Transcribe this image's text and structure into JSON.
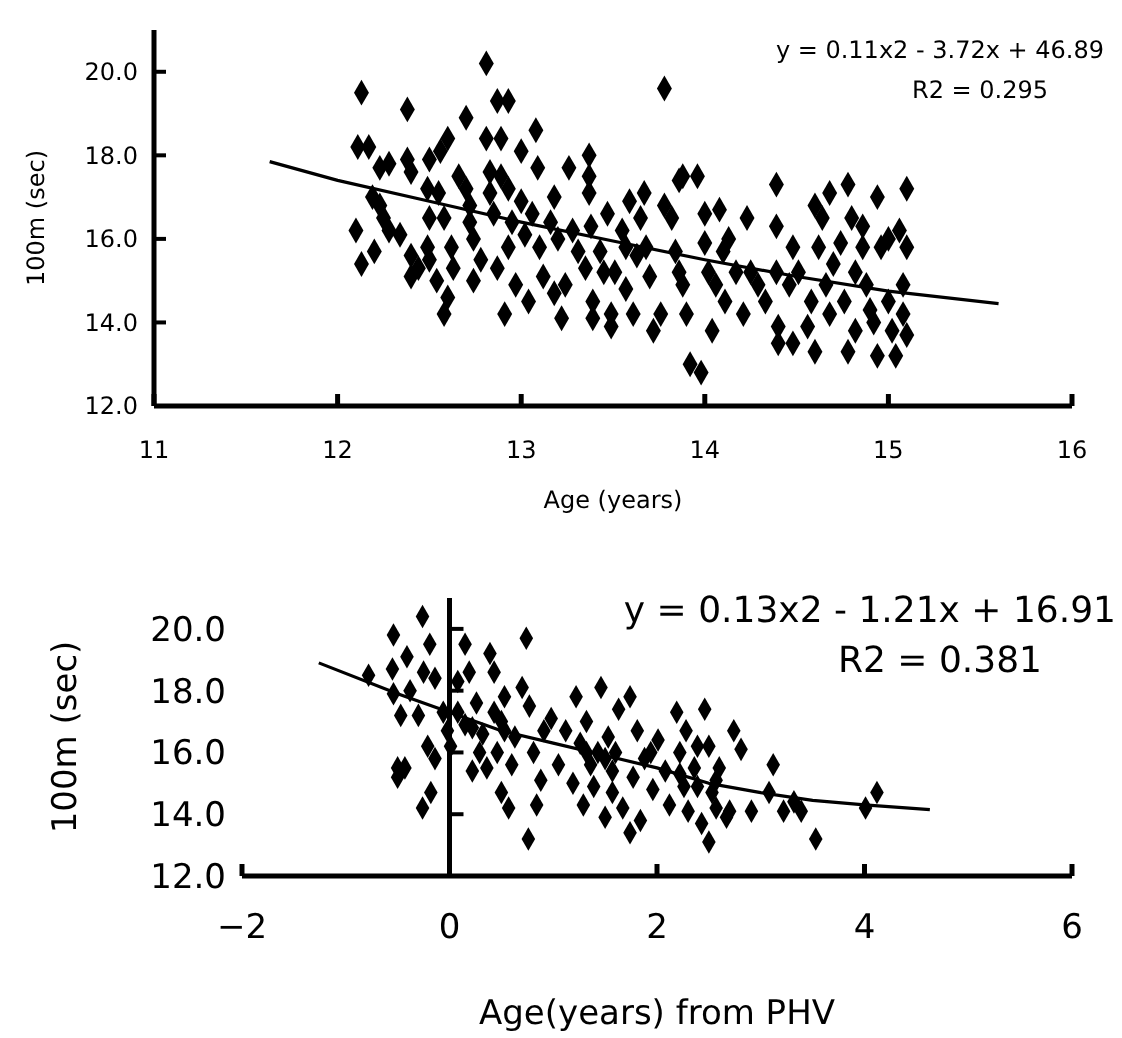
{
  "chart_data": [
    {
      "type": "scatter",
      "xlabel": "Age (years)",
      "ylabel": "100m (sec)",
      "annotations": [
        "y = 0.11x2 - 3.72x + 46.89",
        "R2 = 0.295"
      ],
      "xlim": [
        11,
        16
      ],
      "ylim": [
        12,
        21
      ],
      "xticks": [
        11,
        12,
        13,
        14,
        15,
        16
      ],
      "yticks": [
        {
          "value": 12,
          "label": "12.0"
        },
        {
          "value": 14,
          "label": "14.0"
        },
        {
          "value": 16,
          "label": "16.0"
        },
        {
          "value": 18,
          "label": "18.0"
        },
        {
          "value": 20,
          "label": "20.0"
        }
      ],
      "marker": "diamond",
      "series": [
        {
          "color": "#000000",
          "x": [
            12.13,
            12.11,
            12.17,
            12.1,
            12.13,
            12.19,
            12.2,
            12.23,
            12.25,
            12.23,
            12.28,
            12.28,
            12.34,
            12.38,
            12.38,
            12.4,
            12.4,
            12.4,
            12.44,
            12.5,
            12.49,
            12.5,
            12.49,
            12.5,
            12.54,
            12.56,
            12.55,
            12.58,
            12.6,
            12.58,
            12.6,
            12.62,
            12.63,
            12.66,
            12.7,
            12.7,
            12.72,
            12.72,
            12.74,
            12.74,
            12.78,
            12.81,
            12.81,
            12.83,
            12.83,
            12.85,
            12.87,
            12.87,
            12.89,
            12.89,
            12.91,
            12.93,
            12.93,
            12.93,
            12.95,
            12.97,
            13.0,
            13.0,
            13.02,
            13.04,
            13.06,
            13.08,
            13.09,
            13.1,
            13.12,
            13.16,
            13.18,
            13.18,
            13.2,
            13.26,
            13.24,
            13.22,
            13.28,
            13.31,
            13.35,
            13.37,
            13.37,
            13.37,
            13.38,
            13.39,
            13.39,
            13.43,
            13.45,
            13.47,
            13.49,
            13.49,
            13.51,
            13.55,
            13.57,
            13.57,
            13.59,
            13.61,
            13.63,
            13.65,
            13.67,
            13.68,
            13.7,
            13.72,
            13.76,
            13.78,
            13.78,
            13.82,
            13.84,
            13.86,
            13.88,
            13.86,
            13.88,
            13.9,
            13.92,
            13.96,
            13.98,
            14.0,
            14.0,
            14.02,
            14.04,
            14.06,
            14.08,
            14.1,
            14.11,
            14.13,
            14.17,
            14.21,
            14.23,
            14.25,
            14.29,
            14.33,
            14.39,
            14.39,
            14.39,
            14.4,
            14.4,
            14.46,
            14.48,
            14.48,
            14.51,
            14.56,
            14.58,
            14.6,
            14.6,
            14.62,
            14.64,
            14.66,
            14.68,
            14.68,
            14.7,
            14.74,
            14.76,
            14.78,
            14.78,
            14.8,
            14.82,
            14.82,
            14.86,
            14.86,
            14.88,
            14.9,
            14.92,
            14.94,
            14.94,
            14.96,
            15.0,
            15.0,
            15.02,
            15.04,
            15.06,
            15.08,
            15.1,
            15.1,
            15.1,
            15.08
          ],
          "values": [
            19.5,
            18.2,
            18.2,
            16.2,
            15.4,
            17.0,
            15.7,
            16.8,
            16.5,
            17.7,
            17.8,
            16.2,
            16.1,
            19.1,
            17.9,
            17.6,
            15.6,
            15.1,
            15.3,
            17.9,
            17.2,
            16.5,
            15.8,
            15.5,
            15.0,
            18.1,
            17.1,
            16.5,
            18.4,
            14.2,
            14.6,
            15.8,
            15.3,
            17.5,
            18.9,
            17.2,
            16.8,
            16.4,
            15.0,
            16.0,
            15.5,
            20.2,
            18.4,
            17.6,
            17.1,
            16.6,
            15.3,
            19.3,
            18.4,
            17.5,
            14.2,
            19.3,
            17.2,
            15.8,
            16.4,
            14.9,
            18.1,
            16.9,
            16.1,
            14.5,
            16.6,
            18.6,
            17.7,
            15.8,
            15.1,
            16.4,
            17.0,
            14.7,
            16.0,
            17.7,
            14.9,
            14.1,
            16.2,
            15.7,
            15.3,
            18.0,
            17.5,
            17.1,
            16.3,
            14.5,
            14.1,
            15.7,
            15.2,
            16.6,
            14.2,
            13.9,
            15.2,
            16.2,
            15.8,
            14.8,
            16.9,
            14.2,
            15.6,
            16.5,
            17.1,
            15.8,
            15.1,
            13.8,
            14.2,
            19.6,
            16.8,
            16.5,
            15.7,
            17.4,
            17.5,
            15.2,
            14.9,
            14.2,
            13.0,
            17.5,
            12.8,
            16.6,
            15.9,
            15.2,
            13.8,
            14.9,
            16.7,
            15.7,
            14.5,
            16.0,
            15.2,
            14.2,
            16.5,
            15.2,
            14.9,
            14.5,
            17.3,
            16.3,
            15.2,
            13.5,
            13.9,
            14.9,
            15.8,
            13.5,
            15.2,
            13.9,
            14.5,
            16.8,
            13.3,
            15.8,
            16.5,
            14.9,
            17.1,
            14.2,
            15.4,
            15.9,
            14.5,
            17.3,
            13.3,
            16.5,
            15.2,
            13.8,
            16.3,
            15.8,
            14.9,
            14.3,
            14.0,
            17.0,
            13.2,
            15.8,
            16.0,
            14.5,
            13.8,
            13.2,
            16.2,
            14.9,
            13.7,
            17.2,
            15.8,
            14.2
          ]
        },
        {
          "type": "line",
          "color": "#000000",
          "marker": "none",
          "x": [
            11.63,
            12,
            12.5,
            13,
            13.5,
            14,
            14.5,
            15,
            15.6
          ],
          "values": [
            17.85,
            17.4,
            16.9,
            16.4,
            15.95,
            15.5,
            15.1,
            14.75,
            14.45
          ]
        }
      ]
    },
    {
      "type": "scatter",
      "xlabel": "Age(years) from PHV",
      "ylabel": "100m (sec)",
      "annotations": [
        "y = 0.13x2 - 1.21x + 16.91",
        "R2 = 0.381"
      ],
      "xlim": [
        -2,
        6
      ],
      "ylim": [
        12,
        21
      ],
      "xticks": [
        -2,
        0,
        2,
        4,
        6
      ],
      "yticks": [
        {
          "value": 12,
          "label": "12.0"
        },
        {
          "value": 14,
          "label": "14.0"
        },
        {
          "value": 16,
          "label": "16.0"
        },
        {
          "value": 18,
          "label": "18.0"
        },
        {
          "value": 20,
          "label": "20.0"
        }
      ],
      "marker": "diamond",
      "ref_lines": [
        {
          "axis": "x",
          "value": 0
        }
      ],
      "series": [
        {
          "color": "#000000",
          "x": [
            -0.78,
            -0.54,
            -0.54,
            -0.55,
            -0.47,
            -0.41,
            -0.38,
            -0.5,
            -0.5,
            -0.43,
            -0.3,
            -0.26,
            -0.25,
            -0.19,
            -0.21,
            -0.26,
            -0.18,
            -0.14,
            -0.14,
            -0.06,
            -0.02,
            0.01,
            0.08,
            0.15,
            0.15,
            0.19,
            0.22,
            0.26,
            0.29,
            0.32,
            0.39,
            0.43,
            0.43,
            0.46,
            0.5,
            0.53,
            0.53,
            0.57,
            0.6,
            0.63,
            0.7,
            0.74,
            0.76,
            0.77,
            0.81,
            0.84,
            0.88,
            0.91,
            0.98,
            1.05,
            1.12,
            1.19,
            1.22,
            1.26,
            1.29,
            1.32,
            1.36,
            1.39,
            1.43,
            1.46,
            1.5,
            1.53,
            1.57,
            1.57,
            1.6,
            1.63,
            1.67,
            1.74,
            1.74,
            1.77,
            1.81,
            1.84,
            1.88,
            1.94,
            1.96,
            2.01,
            2.08,
            2.12,
            2.19,
            2.22,
            2.26,
            2.28,
            2.3,
            2.36,
            2.39,
            2.43,
            2.46,
            2.5,
            2.5,
            2.53,
            2.57,
            2.6,
            2.67,
            2.7,
            2.74,
            2.81,
            2.91,
            3.08,
            3.12,
            3.22,
            3.32,
            3.39,
            3.53,
            4.01,
            4.12,
            0.08,
            0.22,
            0.5,
            0.36,
            1.32,
            1.5,
            2.22,
            2.39,
            2.57
          ],
          "values": [
            18.5,
            17.9,
            19.8,
            18.7,
            17.2,
            19.1,
            18.0,
            15.5,
            15.2,
            15.5,
            17.2,
            20.4,
            18.6,
            19.5,
            16.2,
            14.2,
            14.7,
            18.4,
            15.8,
            17.3,
            16.7,
            16.2,
            18.3,
            19.5,
            16.9,
            18.6,
            15.4,
            17.6,
            16.0,
            16.6,
            19.2,
            18.6,
            17.3,
            16.0,
            14.7,
            17.8,
            16.7,
            14.2,
            15.6,
            16.5,
            18.1,
            19.7,
            13.2,
            17.5,
            16.0,
            14.3,
            15.1,
            16.7,
            17.1,
            15.6,
            16.7,
            15.0,
            17.8,
            16.3,
            14.3,
            17.0,
            15.6,
            14.9,
            16.0,
            18.1,
            13.9,
            16.5,
            15.4,
            14.7,
            16.0,
            17.4,
            14.2,
            13.4,
            17.8,
            15.2,
            16.7,
            13.8,
            15.8,
            16.0,
            14.8,
            16.4,
            15.4,
            14.3,
            17.3,
            16.0,
            14.9,
            16.7,
            14.1,
            15.5,
            14.9,
            13.7,
            17.4,
            16.2,
            13.1,
            14.7,
            14.2,
            15.5,
            13.9,
            14.1,
            16.7,
            16.1,
            14.1,
            14.7,
            15.6,
            14.1,
            14.4,
            14.1,
            13.2,
            14.2,
            14.7,
            17.3,
            16.8,
            17.0,
            15.5,
            16.0,
            15.8,
            15.3,
            16.2,
            15.1
          ]
        },
        {
          "type": "line",
          "color": "#000000",
          "marker": "none",
          "x": [
            -1.26,
            -0.5,
            0,
            0.5,
            1,
            1.5,
            2,
            2.5,
            3,
            3.5,
            4,
            4.63
          ],
          "values": [
            18.9,
            17.9,
            17.3,
            16.7,
            16.3,
            15.9,
            15.5,
            15.0,
            14.7,
            14.45,
            14.3,
            14.15
          ]
        }
      ]
    }
  ]
}
